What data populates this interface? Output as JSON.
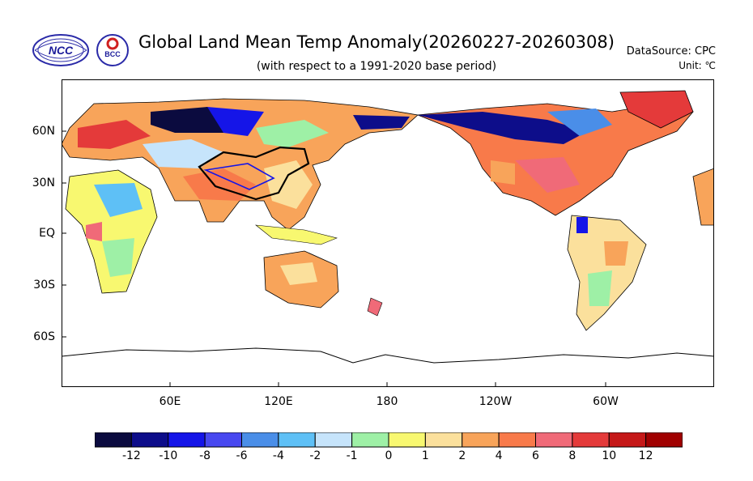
{
  "header": {
    "title": "Global Land Mean Temp Anomaly(20260227-20260308)",
    "subtitle": "(with respect to a 1991-2020 base period)",
    "datasource": "DataSource:  CPC",
    "unit": "Unit:  ℃"
  },
  "logos": {
    "ncc": {
      "text": "NCC",
      "label": "National Climate Center logo"
    },
    "bcc": {
      "text": "BCC",
      "label": "Beijing Climate Center logo"
    }
  },
  "axes": {
    "y_labels": [
      "60N",
      "30N",
      "EQ",
      "30S",
      "60S"
    ],
    "x_labels": [
      "60E",
      "120E",
      "180",
      "120W",
      "60W"
    ]
  },
  "colorbar": {
    "labels": [
      "-12",
      "-10",
      "-8",
      "-6",
      "-4",
      "-2",
      "-1",
      "0",
      "1",
      "2",
      "4",
      "6",
      "8",
      "10",
      "12"
    ],
    "colors": [
      "#0b0b3f",
      "#0d0d8a",
      "#1515e8",
      "#4848f0",
      "#4a8ee8",
      "#5ec0f6",
      "#c6e4fb",
      "#9ef0a6",
      "#f8f870",
      "#fbe09c",
      "#f8a45a",
      "#f87a4a",
      "#f06a78",
      "#e43a3a",
      "#c51818",
      "#a00000"
    ]
  }
}
